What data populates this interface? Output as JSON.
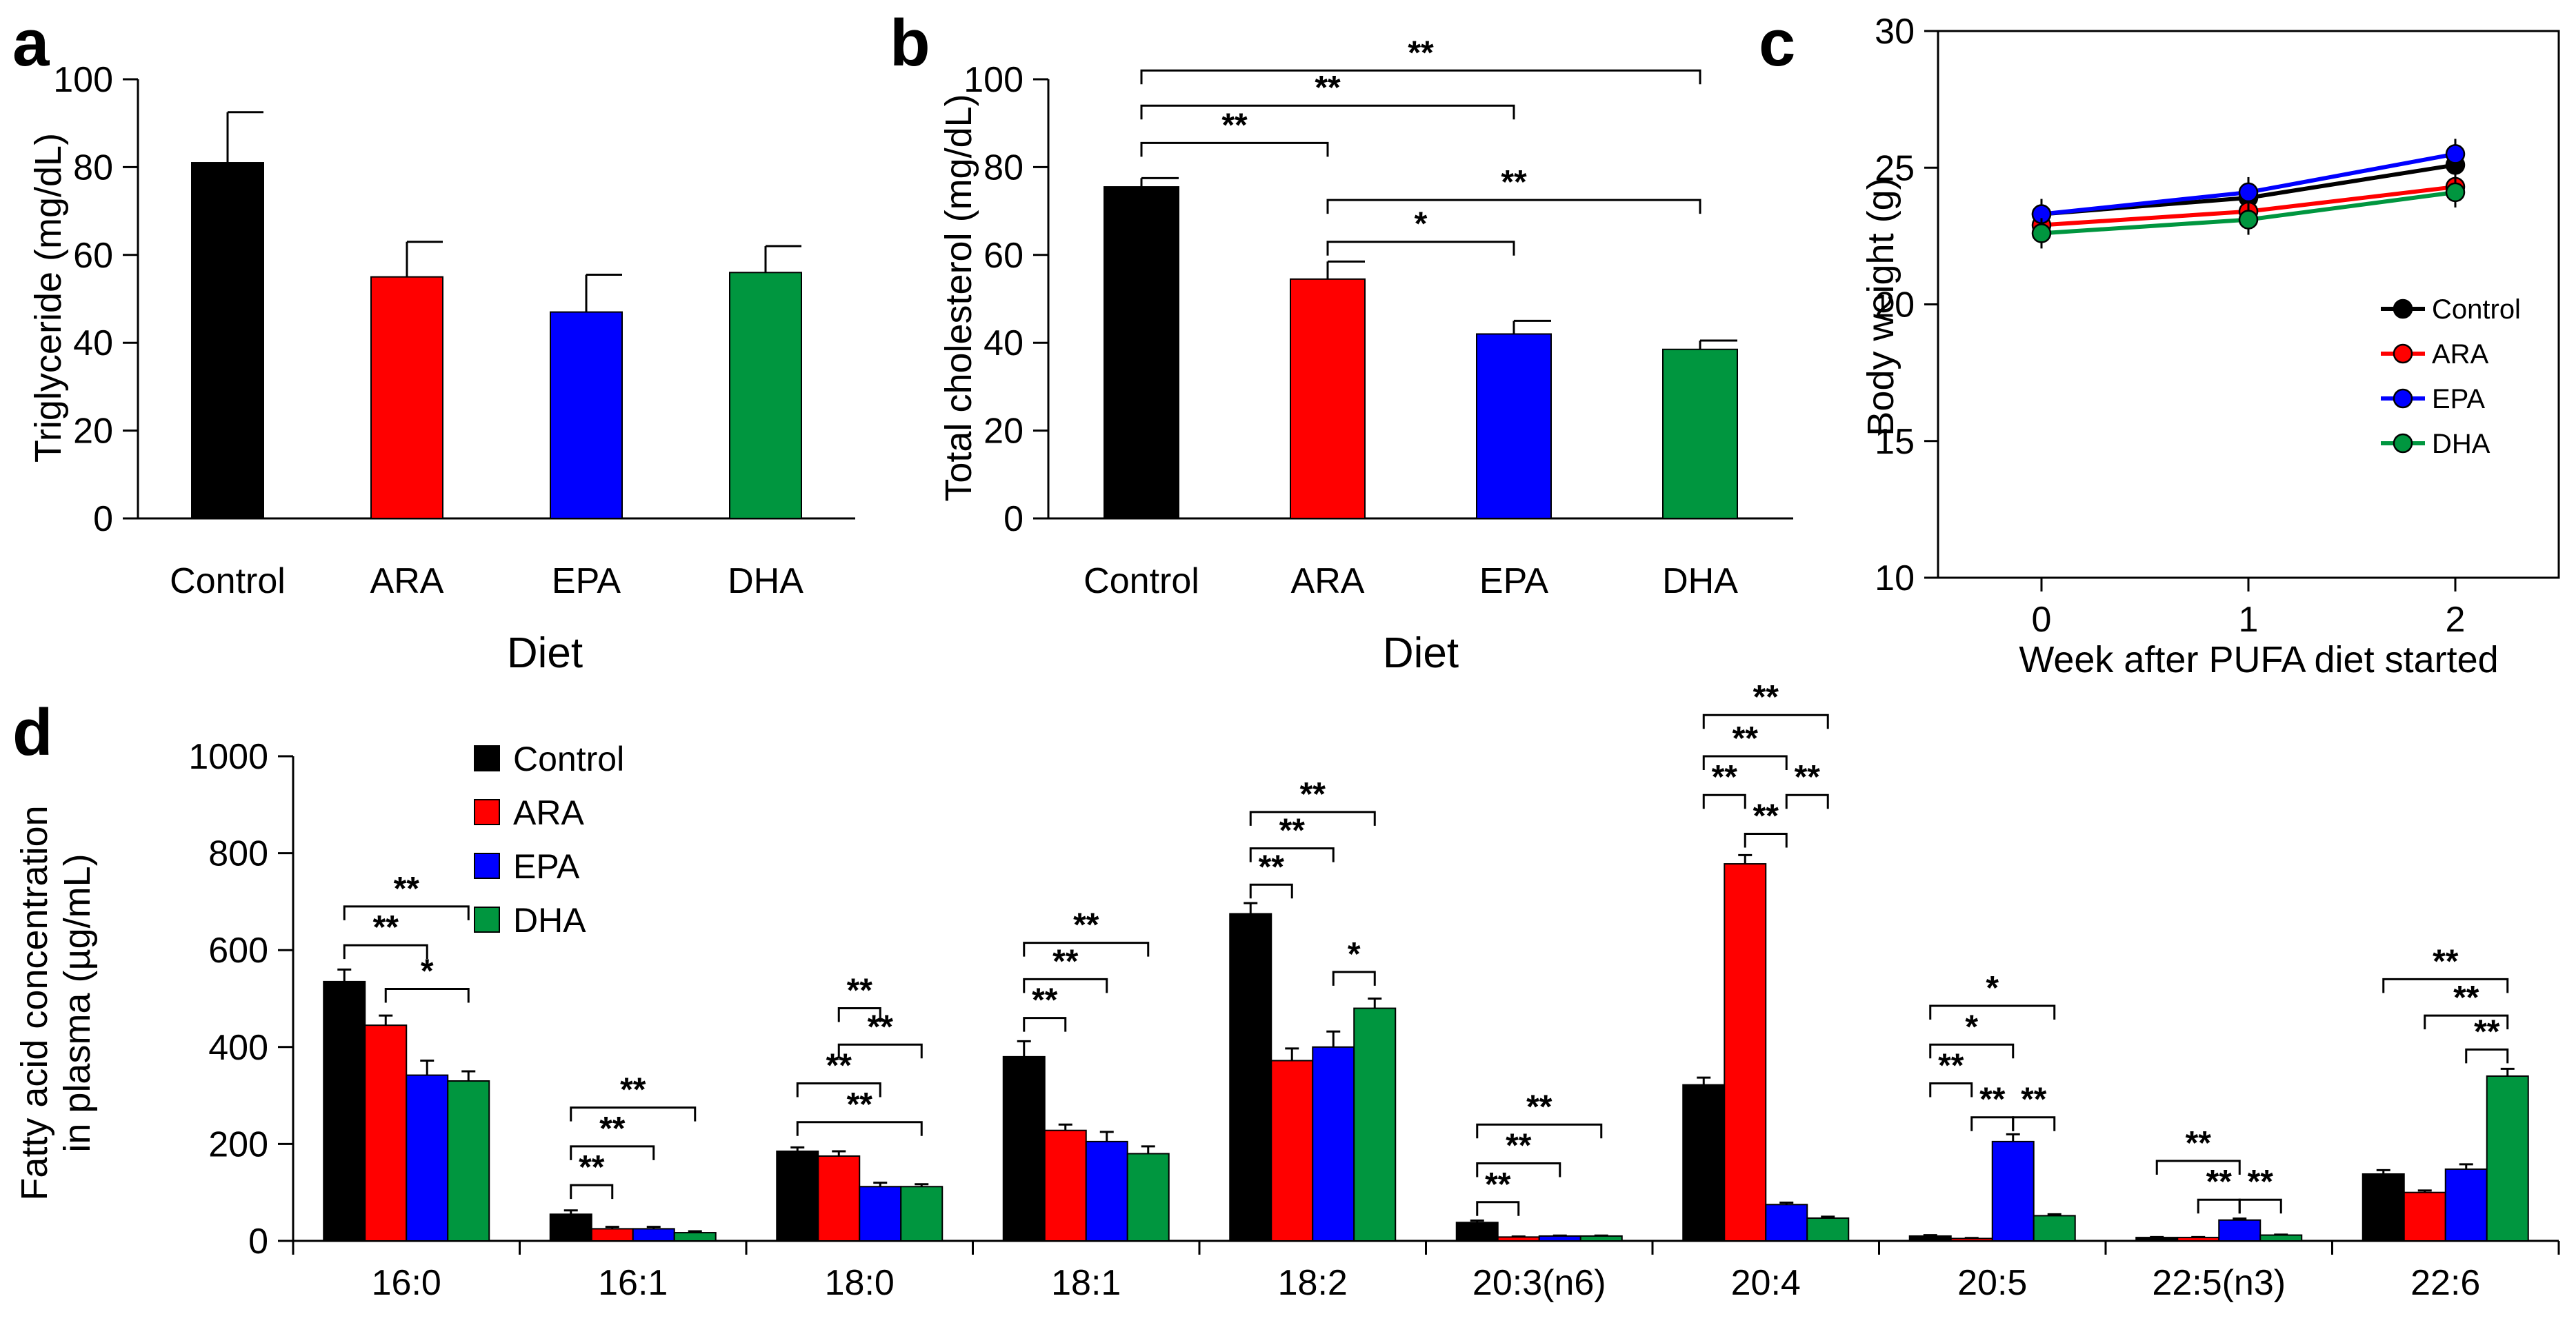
{
  "chart_data": [
    {
      "panel": "a",
      "type": "bar",
      "ylabel": "Triglyceride (mg/dL)",
      "xlabel": "Diet",
      "ylim": [
        0,
        100
      ],
      "yticks": [
        0,
        20,
        40,
        60,
        80,
        100
      ],
      "categories": [
        "Control",
        "ARA",
        "EPA",
        "DHA"
      ],
      "values": [
        81,
        55,
        47,
        56
      ],
      "errors": [
        11.5,
        8,
        8.5,
        6
      ],
      "colors": [
        "#000000",
        "#ff0000",
        "#0000ff",
        "#00963f"
      ],
      "brackets": []
    },
    {
      "panel": "b",
      "type": "bar",
      "ylabel": "Total cholesterol (mg/dL)",
      "xlabel": "Diet",
      "ylim": [
        0,
        100
      ],
      "yticks": [
        0,
        20,
        40,
        60,
        80,
        100
      ],
      "categories": [
        "Control",
        "ARA",
        "EPA",
        "DHA"
      ],
      "values": [
        75.5,
        54.5,
        42,
        38.5
      ],
      "errors": [
        2,
        4,
        3,
        2
      ],
      "colors": [
        "#000000",
        "#ff0000",
        "#0000ff",
        "#00963f"
      ],
      "brackets": [
        {
          "from": 0,
          "to": 3,
          "level": 102,
          "label": "**"
        },
        {
          "from": 0,
          "to": 2,
          "level": 94,
          "label": "**"
        },
        {
          "from": 0,
          "to": 1,
          "level": 85.5,
          "label": "**"
        },
        {
          "from": 1,
          "to": 3,
          "level": 72.5,
          "label": "**"
        },
        {
          "from": 1,
          "to": 2,
          "level": 63,
          "label": "*"
        }
      ]
    },
    {
      "panel": "c",
      "type": "line",
      "ylabel": "Body weight (g)",
      "xlabel": "Week after PUFA diet started",
      "ylim": [
        10,
        30
      ],
      "yticks": [
        10,
        15,
        20,
        25,
        30
      ],
      "xlim": [
        -0.5,
        2.5
      ],
      "x": [
        0,
        1,
        2
      ],
      "series": [
        {
          "name": "Control",
          "color": "#000000",
          "values": [
            23.3,
            23.9,
            25.1
          ]
        },
        {
          "name": "ARA",
          "color": "#ff0000",
          "values": [
            22.9,
            23.4,
            24.3
          ]
        },
        {
          "name": "EPA",
          "color": "#0000ff",
          "values": [
            23.3,
            24.1,
            25.5
          ]
        },
        {
          "name": "DHA",
          "color": "#00963f",
          "values": [
            22.6,
            23.1,
            24.1
          ]
        }
      ]
    },
    {
      "panel": "d",
      "type": "bar",
      "ylabel_lines": [
        "Fatty acid concentration",
        "in plasma (µg/mL)"
      ],
      "ylim": [
        0,
        1000
      ],
      "yticks": [
        0,
        200,
        400,
        600,
        800,
        1000
      ],
      "categories": [
        "16:0",
        "16:1",
        "18:0",
        "18:1",
        "18:2",
        "20:3(n6)",
        "20:4",
        "20:5",
        "22:5(n3)",
        "22:6"
      ],
      "series": [
        {
          "name": "Control",
          "color": "#000000",
          "values": [
            535,
            55,
            185,
            380,
            675,
            38,
            322,
            10,
            7,
            138
          ],
          "errors": [
            25,
            8,
            8,
            32,
            22,
            4,
            15,
            2,
            1,
            8
          ]
        },
        {
          "name": "ARA",
          "color": "#ff0000",
          "values": [
            445,
            25,
            175,
            228,
            372,
            8,
            778,
            5,
            7,
            100
          ],
          "errors": [
            20,
            4,
            10,
            12,
            25,
            1,
            18,
            1,
            1,
            4
          ]
        },
        {
          "name": "EPA",
          "color": "#0000ff",
          "values": [
            342,
            25,
            112,
            205,
            400,
            10,
            75,
            205,
            43,
            148
          ],
          "errors": [
            30,
            4,
            8,
            20,
            32,
            1,
            4,
            15,
            3,
            10
          ]
        },
        {
          "name": "DHA",
          "color": "#00963f",
          "values": [
            330,
            17,
            112,
            180,
            480,
            10,
            47,
            52,
            12,
            340
          ],
          "errors": [
            20,
            3,
            5,
            15,
            20,
            1,
            3,
            3,
            1,
            15
          ]
        }
      ],
      "brackets": [
        {
          "group": 0,
          "from": 0,
          "to": 3,
          "level": 690,
          "label": "**"
        },
        {
          "group": 0,
          "from": 0,
          "to": 2,
          "level": 610,
          "label": "**"
        },
        {
          "group": 0,
          "from": 1,
          "to": 3,
          "level": 520,
          "label": "*"
        },
        {
          "group": 1,
          "from": 0,
          "to": 3,
          "level": 275,
          "label": "**"
        },
        {
          "group": 1,
          "from": 0,
          "to": 2,
          "level": 195,
          "label": "**"
        },
        {
          "group": 1,
          "from": 0,
          "to": 1,
          "level": 115,
          "label": "**"
        },
        {
          "group": 2,
          "from": 1,
          "to": 2,
          "level": 480,
          "label": "**"
        },
        {
          "group": 2,
          "from": 1,
          "to": 3,
          "level": 405,
          "label": "**"
        },
        {
          "group": 2,
          "from": 0,
          "to": 2,
          "level": 325,
          "label": "**"
        },
        {
          "group": 2,
          "from": 0,
          "to": 3,
          "level": 245,
          "label": "**"
        },
        {
          "group": 3,
          "from": 0,
          "to": 3,
          "level": 615,
          "label": "**"
        },
        {
          "group": 3,
          "from": 0,
          "to": 2,
          "level": 540,
          "label": "**"
        },
        {
          "group": 3,
          "from": 0,
          "to": 1,
          "level": 460,
          "label": "**"
        },
        {
          "group": 4,
          "from": 0,
          "to": 3,
          "level": 885,
          "label": "**"
        },
        {
          "group": 4,
          "from": 0,
          "to": 2,
          "level": 810,
          "label": "**"
        },
        {
          "group": 4,
          "from": 0,
          "to": 1,
          "level": 735,
          "label": "**"
        },
        {
          "group": 4,
          "from": 2,
          "to": 3,
          "level": 555,
          "label": "*"
        },
        {
          "group": 5,
          "from": 0,
          "to": 3,
          "level": 240,
          "label": "**"
        },
        {
          "group": 5,
          "from": 0,
          "to": 2,
          "level": 160,
          "label": "**"
        },
        {
          "group": 5,
          "from": 0,
          "to": 1,
          "level": 80,
          "label": "**"
        },
        {
          "group": 6,
          "from": 0,
          "to": 3,
          "level": 1085,
          "label": "**"
        },
        {
          "group": 6,
          "from": 0,
          "to": 2,
          "level": 1000,
          "label": "**"
        },
        {
          "group": 6,
          "from": 0,
          "to": 1,
          "level": 920,
          "label": "**"
        },
        {
          "group": 6,
          "from": 2,
          "to": 3,
          "level": 920,
          "label": "**"
        },
        {
          "group": 6,
          "from": 1,
          "to": 2,
          "level": 840,
          "label": "**"
        },
        {
          "group": 7,
          "from": 0,
          "to": 3,
          "level": 485,
          "label": "*"
        },
        {
          "group": 7,
          "from": 0,
          "to": 2,
          "level": 405,
          "label": "*"
        },
        {
          "group": 7,
          "from": 0,
          "to": 1,
          "level": 325,
          "label": "**"
        },
        {
          "group": 7,
          "from": 1,
          "to": 2,
          "level": 255,
          "label": "**"
        },
        {
          "group": 7,
          "from": 2,
          "to": 3,
          "level": 255,
          "label": "**"
        },
        {
          "group": 8,
          "from": 0,
          "to": 2,
          "level": 165,
          "label": "**"
        },
        {
          "group": 8,
          "from": 1,
          "to": 2,
          "level": 85,
          "label": "**"
        },
        {
          "group": 8,
          "from": 2,
          "to": 3,
          "level": 85,
          "label": "**"
        },
        {
          "group": 9,
          "from": 0,
          "to": 3,
          "level": 540,
          "label": "**"
        },
        {
          "group": 9,
          "from": 1,
          "to": 3,
          "level": 465,
          "label": "**"
        },
        {
          "group": 9,
          "from": 2,
          "to": 3,
          "level": 395,
          "label": "**"
        }
      ]
    }
  ],
  "panel_labels": {
    "a": "a",
    "b": "b",
    "c": "c",
    "d": "d"
  },
  "panel_a": {
    "ylabel": "Triglyceride (mg/dL)",
    "xlabel": "Diet"
  },
  "panel_b": {
    "ylabel": "Total cholesterol (mg/dL)",
    "xlabel": "Diet"
  },
  "panel_c": {
    "ylabel": "Body weight (g)",
    "xlabel": "Week after PUFA diet started"
  },
  "panel_d": {
    "ylabel_line1": "Fatty acid concentration",
    "ylabel_line2": "in plasma (µg/mL)"
  }
}
